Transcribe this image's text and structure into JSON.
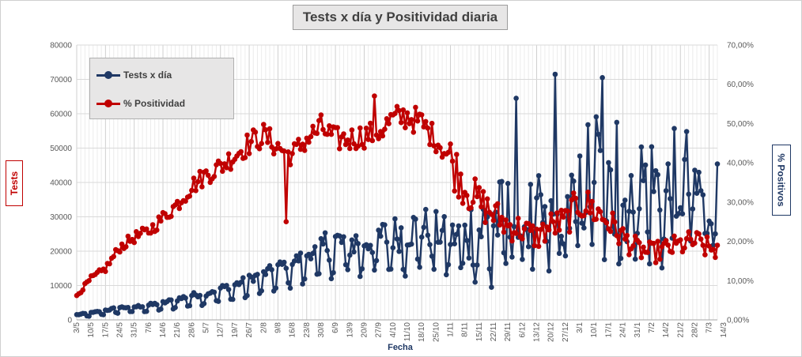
{
  "chart_data": {
    "type": "line",
    "title": "Tests x día y Positividad  diaria",
    "xlabel": "Fecha",
    "ylabel_left": "Tests",
    "ylabel_right": "% Positivos",
    "y_left_range": [
      0,
      80000
    ],
    "y_left_ticks": [
      "0",
      "10000",
      "20000",
      "30000",
      "40000",
      "50000",
      "60000",
      "70000",
      "80000"
    ],
    "y_right_range": [
      0,
      0.7
    ],
    "y_right_ticks": [
      "0,00%",
      "10,00%",
      "20,00%",
      "30,00%",
      "40,00%",
      "50,00%",
      "60,00%",
      "70,00%"
    ],
    "grid": true,
    "legend_position": "top-left",
    "x_ticks": [
      "3/5",
      "10/5",
      "17/5",
      "24/5",
      "31/5",
      "7/6",
      "14/6",
      "21/6",
      "28/6",
      "5/7",
      "12/7",
      "19/7",
      "26/7",
      "2/8",
      "9/8",
      "16/8",
      "23/8",
      "30/8",
      "6/9",
      "13/9",
      "20/9",
      "27/9",
      "4/10",
      "11/10",
      "18/10",
      "25/10",
      "1/11",
      "8/11",
      "15/11",
      "22/11",
      "29/11",
      "6/12",
      "13/12",
      "20/12",
      "27/12",
      "3/1",
      "10/1",
      "17/1",
      "24/1",
      "31/1",
      "7/2",
      "14/2",
      "21/2",
      "28/2",
      "7/3",
      "14/3"
    ],
    "x_tick_step_days": 7,
    "series": [
      {
        "name": "Tests x día",
        "axis": "left",
        "color": "#1f3864",
        "anchors": [
          [
            0,
            1500
          ],
          [
            7,
            2000
          ],
          [
            14,
            2800
          ],
          [
            21,
            3600
          ],
          [
            28,
            3800
          ],
          [
            35,
            4300
          ],
          [
            42,
            5000
          ],
          [
            49,
            6000
          ],
          [
            56,
            7200
          ],
          [
            63,
            7700
          ],
          [
            70,
            9200
          ],
          [
            77,
            10200
          ],
          [
            84,
            12000
          ],
          [
            91,
            13500
          ],
          [
            98,
            15500
          ],
          [
            105,
            17000
          ],
          [
            112,
            19000
          ],
          [
            119,
            21500
          ],
          [
            126,
            22800
          ],
          [
            133,
            22500
          ],
          [
            140,
            23000
          ],
          [
            147,
            24000
          ],
          [
            154,
            25000
          ],
          [
            161,
            26000
          ],
          [
            168,
            27500
          ],
          [
            175,
            26000
          ],
          [
            182,
            24000
          ],
          [
            189,
            25500
          ],
          [
            196,
            27000
          ],
          [
            203,
            29000
          ],
          [
            210,
            30000
          ],
          [
            217,
            29000
          ],
          [
            224,
            30000
          ],
          [
            231,
            28000
          ],
          [
            238,
            31000
          ],
          [
            245,
            36000
          ],
          [
            252,
            47000
          ],
          [
            259,
            36000
          ],
          [
            266,
            34000
          ],
          [
            273,
            41000
          ],
          [
            280,
            40000
          ],
          [
            287,
            36000
          ],
          [
            294,
            42000
          ],
          [
            301,
            38000
          ],
          [
            308,
            35000
          ]
        ],
        "notable_values": {
          "max": 71500,
          "min": 1500
        }
      },
      {
        "name": "% Positividad",
        "axis": "right",
        "color": "#c00000",
        "anchors": [
          [
            0,
            0.062
          ],
          [
            7,
            0.105
          ],
          [
            14,
            0.13
          ],
          [
            21,
            0.185
          ],
          [
            28,
            0.21
          ],
          [
            35,
            0.225
          ],
          [
            42,
            0.26
          ],
          [
            49,
            0.295
          ],
          [
            56,
            0.34
          ],
          [
            63,
            0.37
          ],
          [
            70,
            0.39
          ],
          [
            77,
            0.42
          ],
          [
            84,
            0.45
          ],
          [
            91,
            0.47
          ],
          [
            98,
            0.44
          ],
          [
            105,
            0.42
          ],
          [
            112,
            0.46
          ],
          [
            119,
            0.49
          ],
          [
            126,
            0.46
          ],
          [
            133,
            0.46
          ],
          [
            140,
            0.47
          ],
          [
            147,
            0.48
          ],
          [
            154,
            0.51
          ],
          [
            161,
            0.52
          ],
          [
            168,
            0.5
          ],
          [
            175,
            0.46
          ],
          [
            182,
            0.41
          ],
          [
            189,
            0.34
          ],
          [
            196,
            0.3
          ],
          [
            203,
            0.27
          ],
          [
            210,
            0.24
          ],
          [
            217,
            0.23
          ],
          [
            224,
            0.21
          ],
          [
            231,
            0.24
          ],
          [
            238,
            0.25
          ],
          [
            245,
            0.3
          ],
          [
            252,
            0.28
          ],
          [
            259,
            0.25
          ],
          [
            266,
            0.21
          ],
          [
            273,
            0.18
          ],
          [
            280,
            0.17
          ],
          [
            287,
            0.18
          ],
          [
            294,
            0.19
          ],
          [
            301,
            0.2
          ],
          [
            308,
            0.18
          ]
        ],
        "notable_values": {
          "max": 0.57,
          "min": 0.062
        }
      }
    ]
  }
}
